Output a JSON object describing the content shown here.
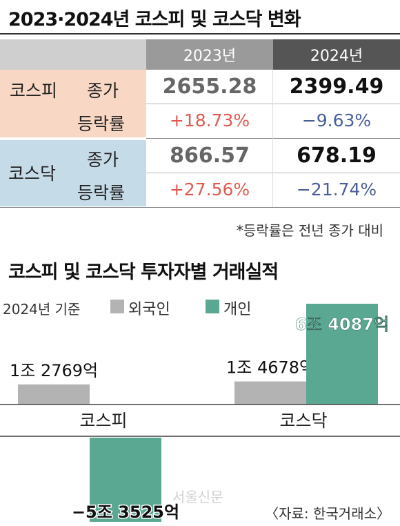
{
  "title": "2023·2024년 코스피 및 코스닥 변화",
  "table": {
    "columns": [
      "2023년",
      "2024년"
    ],
    "rows": [
      {
        "market": "코스피",
        "metric": "종가",
        "v2023": "2655.28",
        "v2024": "2399.49"
      },
      {
        "market": "코스피",
        "metric": "등락률",
        "v2023": "+18.73%",
        "v2024": "−9.63%"
      },
      {
        "market": "코스닥",
        "metric": "종가",
        "v2023": "866.57",
        "v2024": "678.19"
      },
      {
        "market": "코스닥",
        "metric": "등락률",
        "v2023": "+27.56%",
        "v2024": "−21.74%"
      }
    ],
    "note": "*등락률은 전년 종가 대비"
  },
  "colors": {
    "kospi_bg": "#f8d7c4",
    "kosdaq_bg": "#c6dbe8",
    "foreign": "#b3b3b3",
    "individual": "#5aa892",
    "positive": "#e3594f",
    "negative": "#4a5f9a"
  },
  "chart_data": {
    "type": "bar",
    "title": "코스피 및 코스닥 투자자별 거래실적",
    "subtitle": "2024년 기준",
    "unit": "억원",
    "categories": [
      "코스피",
      "코스닥"
    ],
    "series": [
      {
        "name": "외국인",
        "values": [
          12769,
          14678
        ],
        "labels": [
          "1조 2769억",
          "1조 4678억"
        ]
      },
      {
        "name": "개인",
        "values": [
          -53525,
          64087
        ],
        "labels": [
          "−5조 3525억",
          "6조 4087억"
        ]
      }
    ],
    "legend": "top"
  },
  "source": "〈자료: 한국거래소〉",
  "watermark": "서울신문"
}
